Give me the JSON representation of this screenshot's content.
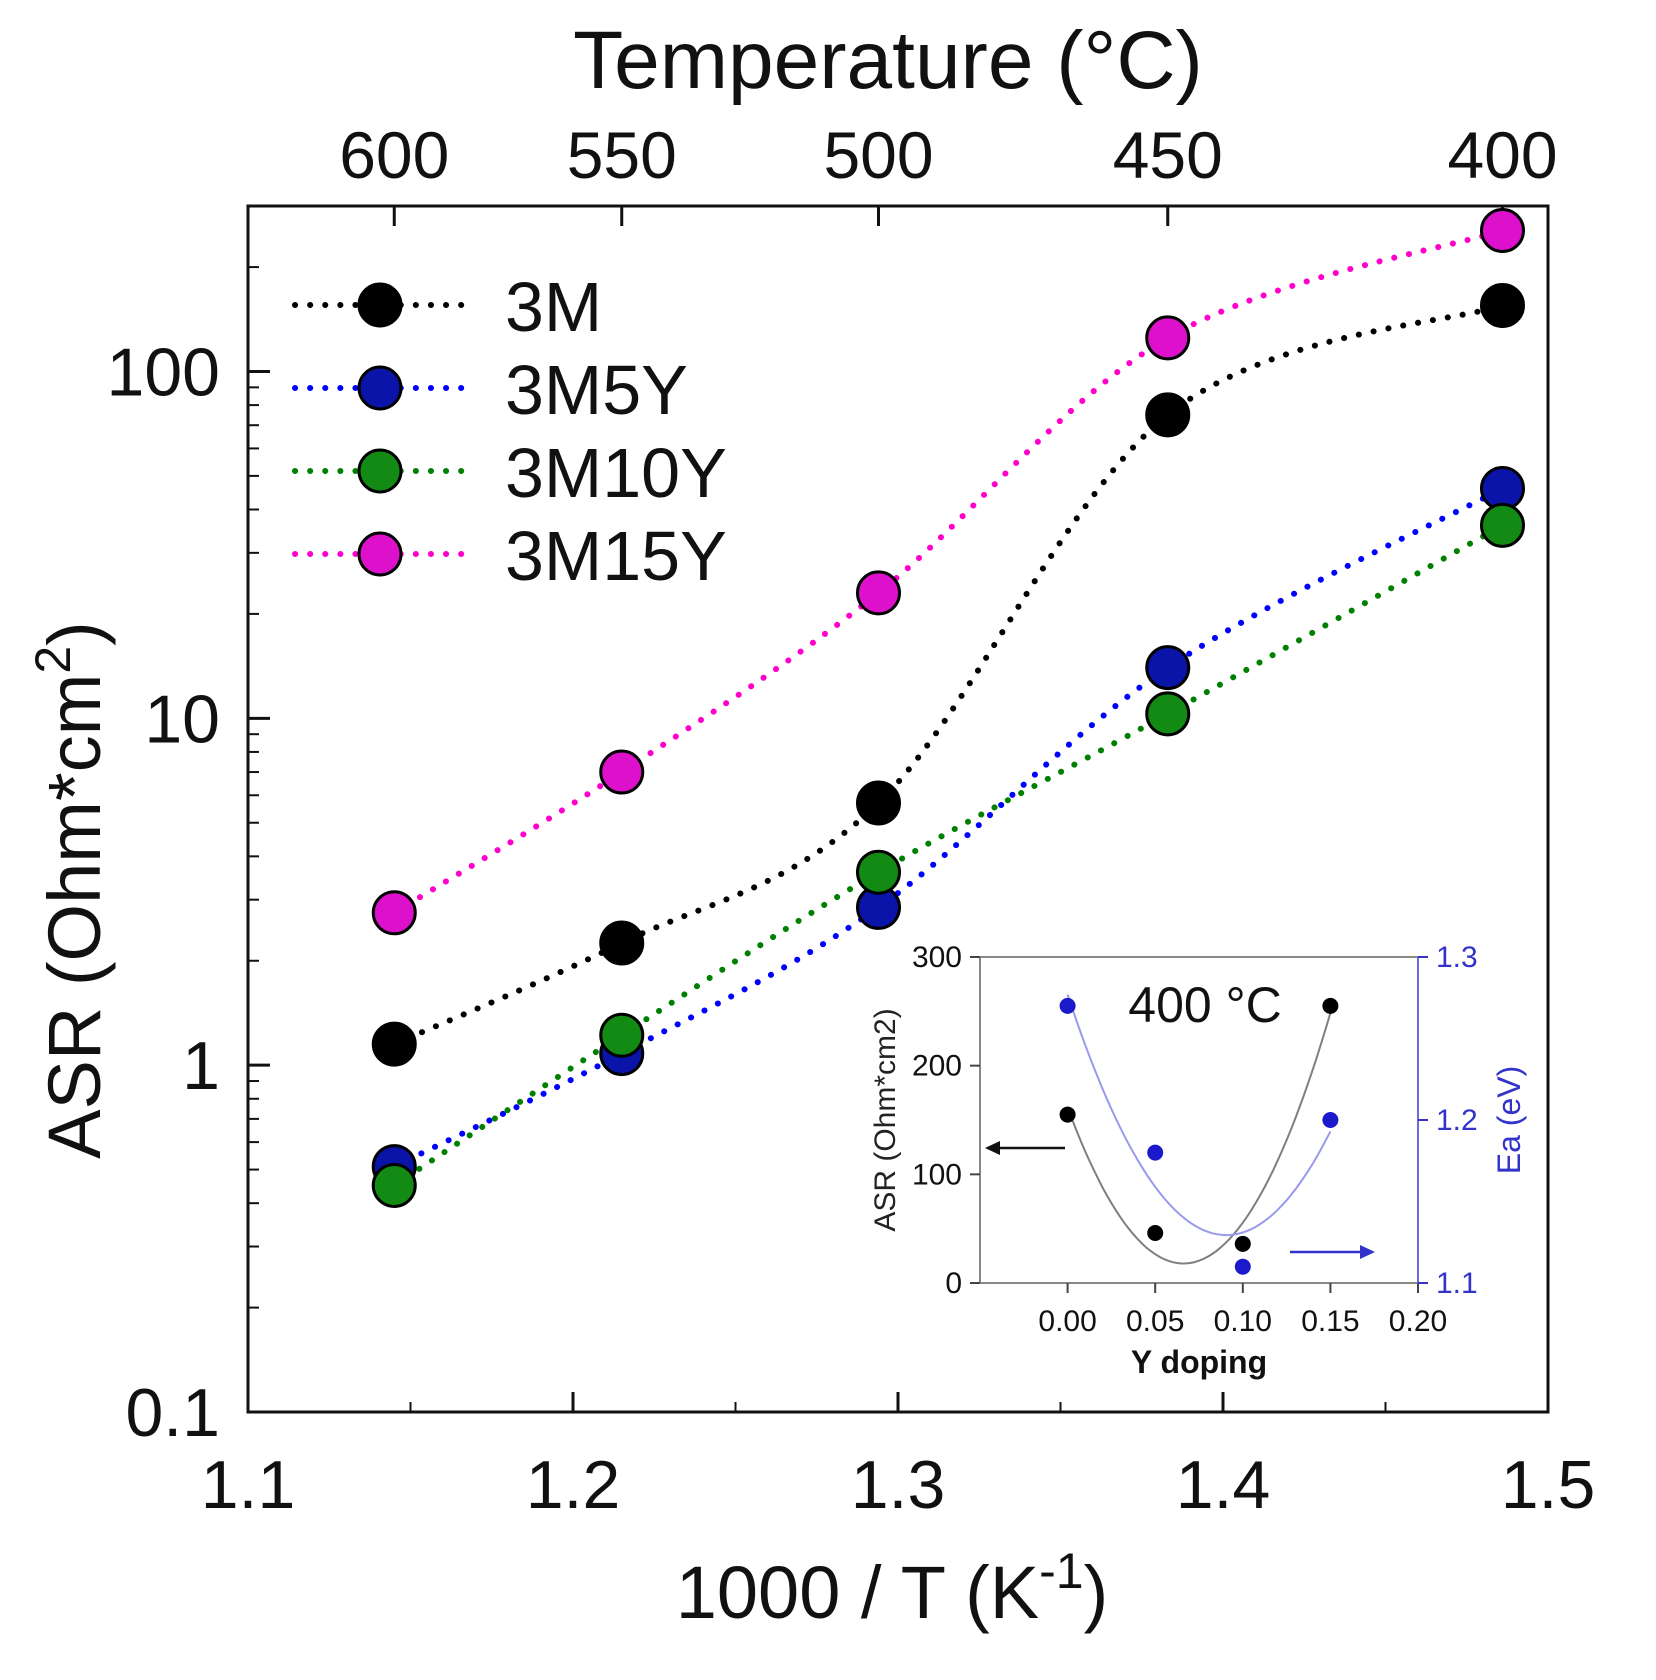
{
  "chart_data": [
    {
      "type": "scatter",
      "title": "",
      "xlabel": "1000 / T (K",
      "xlabel_sup": "-1",
      "xlabel_suffix": ")",
      "ylabel": "ASR (Ohm*cm",
      "ylabel_sup": "2",
      "ylabel_suffix": ")",
      "top_axis_label": "Temperature (°C)",
      "yscale": "log",
      "xlim": [
        1.1,
        1.5
      ],
      "ylim": [
        0.1,
        300
      ],
      "xticks": [
        1.1,
        1.2,
        1.3,
        1.4,
        1.5
      ],
      "xtick_labels": [
        "1.1",
        "1.2",
        "1.3",
        "1.4",
        "1.5"
      ],
      "yticks": [
        0.1,
        1,
        10,
        100
      ],
      "ytick_labels": [
        "0.1",
        "1",
        "10",
        "100"
      ],
      "top_ticks": [
        {
          "label": "600",
          "x": 1.145
        },
        {
          "label": "550",
          "x": 1.215
        },
        {
          "label": "500",
          "x": 1.294
        },
        {
          "label": "450",
          "x": 1.383
        },
        {
          "label": "400",
          "x": 1.486
        }
      ],
      "x": [
        1.145,
        1.215,
        1.294,
        1.383,
        1.486
      ],
      "series": [
        {
          "name": "3M",
          "color": "#000000",
          "values": [
            1.15,
            2.25,
            5.7,
            75,
            155
          ]
        },
        {
          "name": "3M5Y",
          "color": "#0000ff",
          "fill": "#0a14a8",
          "values": [
            0.51,
            1.08,
            2.85,
            14,
            46
          ]
        },
        {
          "name": "3M10Y",
          "color": "#008000",
          "fill": "#138a13",
          "values": [
            0.45,
            1.22,
            3.6,
            10.3,
            36
          ]
        },
        {
          "name": "3M15Y",
          "color": "#ff00cc",
          "fill": "#dd11cc",
          "values": [
            2.75,
            7.0,
            23,
            125,
            255
          ]
        }
      ],
      "legend_position": "top-left"
    },
    {
      "type": "scatter",
      "inset": true,
      "annotation": "400 °C",
      "xlabel": "Y doping",
      "ylabel": "ASR (Ohm*cm2)",
      "ylabel_right": "Ea (eV)",
      "xlim": [
        -0.05,
        0.2
      ],
      "ylim": [
        0,
        300
      ],
      "ylim_right": [
        1.1,
        1.3
      ],
      "xticks": [
        0.0,
        0.05,
        0.1,
        0.15,
        0.2
      ],
      "xtick_labels": [
        "0.00",
        "0.05",
        "0.10",
        "0.15",
        "0.20"
      ],
      "yticks": [
        0,
        100,
        200,
        300
      ],
      "ytick_labels": [
        "0",
        "100",
        "200",
        "300"
      ],
      "yticks_right": [
        1.1,
        1.2,
        1.3
      ],
      "ytick_labels_right": [
        "1.1",
        "1.2",
        "1.3"
      ],
      "x": [
        0.0,
        0.05,
        0.1,
        0.15
      ],
      "series": [
        {
          "name": "ASR",
          "axis": "left",
          "color": "#000000",
          "curve_color": "#7f7f7f",
          "values": [
            155,
            46,
            36,
            255
          ]
        },
        {
          "name": "Ea",
          "axis": "right",
          "color": "#1a1acc",
          "curve_color": "#9999ee",
          "values": [
            1.27,
            1.18,
            1.11,
            1.2
          ]
        }
      ]
    }
  ]
}
